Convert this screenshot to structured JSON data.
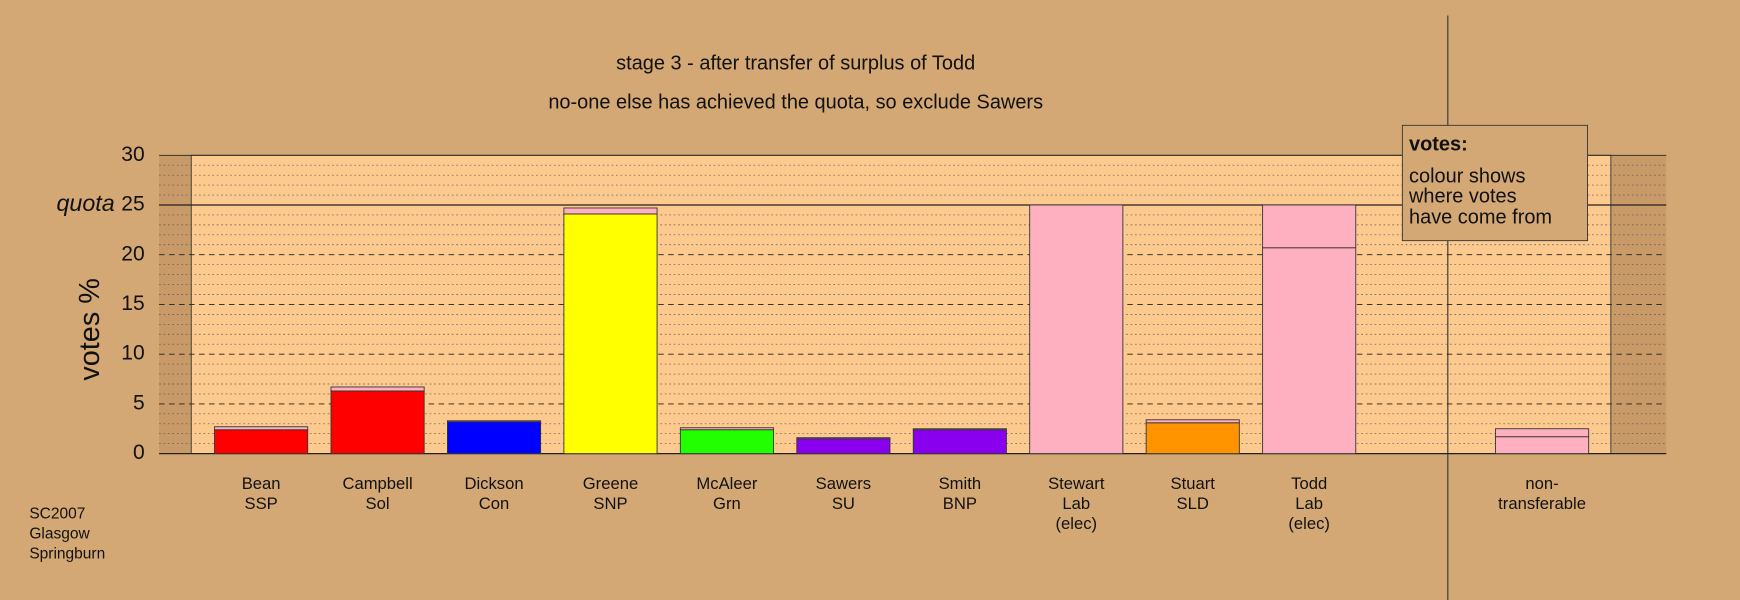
{
  "chart_data": {
    "type": "bar",
    "stacked": true,
    "title": "stage 3 - after transfer of surplus of Todd",
    "subtitle": "no-one else has achieved the quota, so exclude Sawers",
    "ylabel": "votes %",
    "quota": {
      "value": 25,
      "label": "quota"
    },
    "legend": {
      "title": "votes:",
      "lines": [
        "colour shows",
        "where votes",
        "have come from"
      ]
    },
    "footnote": [
      "SC2007",
      "Glasgow",
      "Springburn"
    ],
    "categories": [
      [
        "Bean",
        "SSP"
      ],
      [
        "Campbell",
        "Sol"
      ],
      [
        "Dickson",
        "Con"
      ],
      [
        "Greene",
        "SNP"
      ],
      [
        "McAleer",
        "Grn"
      ],
      [
        "Sawers",
        "SU"
      ],
      [
        "Smith",
        "BNP"
      ],
      [
        "Stewart",
        "Lab",
        "(elec)"
      ],
      [
        "Stuart",
        "SLD"
      ],
      [
        "Todd",
        "Lab",
        "(elec)"
      ],
      null,
      [
        "non-",
        "transferable"
      ]
    ],
    "series": [
      {
        "values": [
          2.4,
          6.3,
          3.2,
          24.1,
          2.4,
          1.5,
          2.4,
          25,
          3.1,
          20.7,
          null,
          1.7
        ],
        "colors": [
          "#ff0000",
          "#ff0000",
          "#0000ff",
          "#ffff00",
          "#22ff00",
          "#8800ee",
          "#8800ee",
          "#ffb0c0",
          "#ff9400",
          "#ffb0c0",
          null,
          "#ffb0c0"
        ]
      },
      {
        "values": [
          0.3,
          0.4,
          0.1,
          0.6,
          0.2,
          0.1,
          0.1,
          null,
          0.3,
          4.3,
          null,
          0.8
        ],
        "color": "#ffb0c0"
      }
    ],
    "ylim": [
      0,
      30
    ],
    "yticks": [
      0,
      5,
      10,
      15,
      20,
      25,
      30
    ],
    "minor_yticks": [
      1,
      2,
      3,
      4,
      6,
      7,
      8,
      9,
      11,
      12,
      13,
      14,
      16,
      17,
      18,
      19,
      21,
      22,
      23,
      24,
      26,
      27,
      28,
      29
    ],
    "grid": true
  }
}
